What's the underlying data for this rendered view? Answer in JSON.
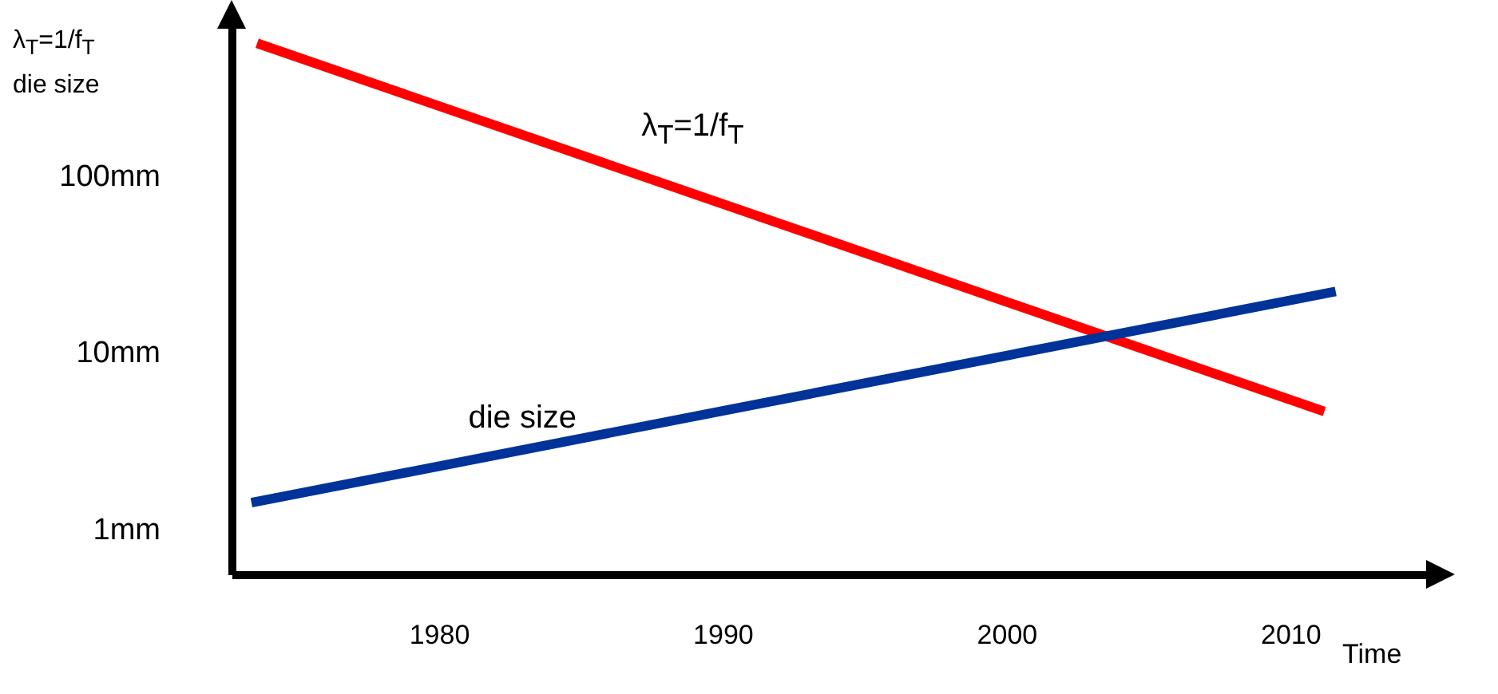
{
  "chart_data": {
    "type": "line",
    "xlabel": "Time",
    "ylabel": "λ$_{T}$=1/f$_{T}$\ndie size",
    "log": "y",
    "grid": false,
    "marker": "none",
    "line_style": "solid",
    "xlim": [
      1972.7,
      2014.9
    ],
    "xticks": [
      1980,
      1990,
      2000,
      2010
    ],
    "ylim": [
      0.55,
      800
    ],
    "yticks": [
      {
        "value": 1,
        "label": "1mm"
      },
      {
        "value": 10,
        "label": "10mm"
      },
      {
        "value": 100,
        "label": "100mm"
      }
    ],
    "series": [
      {
        "name": "λ$_{T}$=1/f$_{T}$",
        "color": "#ff0000",
        "x": [
          1973.6,
          2011.2
        ],
        "values": [
          560,
          4.6
        ]
      },
      {
        "name": "die size",
        "color": "#003399",
        "x": [
          1973.4,
          2011.6
        ],
        "values": [
          1.4,
          22
        ]
      }
    ]
  }
}
